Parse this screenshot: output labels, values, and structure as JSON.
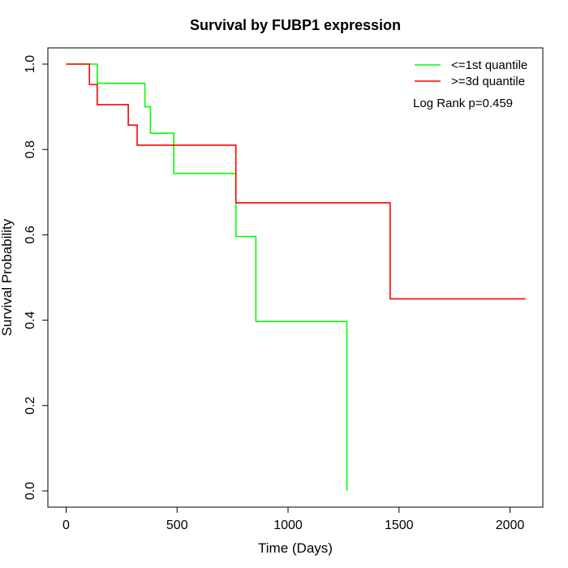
{
  "chart_data": {
    "type": "line",
    "title": "Survival by FUBP1 expression",
    "xlabel": "Time (Days)",
    "ylabel": "Survival Probability",
    "xlim": [
      0,
      2070
    ],
    "ylim": [
      0,
      1
    ],
    "xticks": [
      0,
      500,
      1000,
      1500,
      2000
    ],
    "yticks": [
      0.0,
      0.2,
      0.4,
      0.6,
      0.8,
      1.0
    ],
    "ytick_labels": [
      "0.0",
      "0.2",
      "0.4",
      "0.6",
      "0.8",
      "1.0"
    ],
    "grid": false,
    "legend_position": "top-right",
    "annotation": "Log Rank p=0.459",
    "series": [
      {
        "name": "<=1st quantile",
        "color": "#00ff00",
        "step": true,
        "x": [
          0,
          140,
          355,
          380,
          485,
          765,
          855,
          1265,
          1265
        ],
        "y": [
          1.0,
          0.955,
          0.9,
          0.838,
          0.744,
          0.596,
          0.397,
          0.397,
          0.0
        ]
      },
      {
        "name": ">=3d quantile",
        "color": "#ff0000",
        "step": true,
        "x": [
          0,
          105,
          140,
          280,
          320,
          765,
          1460,
          2070
        ],
        "y": [
          1.0,
          0.952,
          0.905,
          0.857,
          0.81,
          0.675,
          0.45,
          0.45
        ]
      }
    ]
  }
}
